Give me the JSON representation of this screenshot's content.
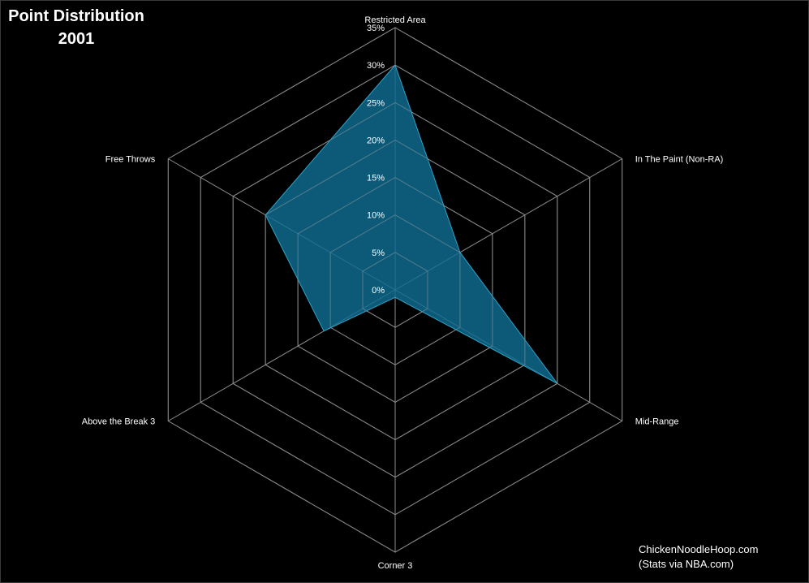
{
  "title": "Point Distribution",
  "subtitle": "2001",
  "credit": {
    "line1": "ChickenNoodleHoop.com",
    "line2": "(Stats via NBA.com)"
  },
  "colors": {
    "background": "#000000",
    "grid": "#8c8c8c",
    "fill": "#0f6d93",
    "fill_stroke": "#2ea3c9",
    "text": "#ffffff"
  },
  "chart_data": {
    "type": "radar",
    "categories": [
      "Restricted Area",
      "In The Paint (Non-RA)",
      "Mid-Range",
      "Corner 3",
      "Above the Break 3",
      "Free Throws"
    ],
    "values": [
      30,
      10,
      25,
      1,
      11,
      20
    ],
    "unit": "%",
    "rlim": [
      0,
      35
    ],
    "ticks": [
      "0%",
      "5%",
      "10%",
      "15%",
      "20%",
      "25%",
      "30%",
      "35%"
    ],
    "grid": true
  }
}
